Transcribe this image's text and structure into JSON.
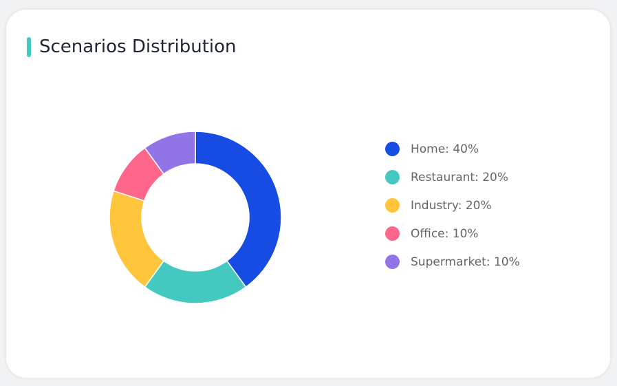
{
  "card": {
    "title": "Scenarios Distribution",
    "accent": "#42c9be"
  },
  "chart_data": {
    "type": "pie",
    "donut": true,
    "title": "Scenarios Distribution",
    "legend_position": "right",
    "slices": [
      {
        "name": "Home",
        "value": 40,
        "color": "#164be4",
        "label": "Home: 40%"
      },
      {
        "name": "Restaurant",
        "value": 20,
        "color": "#43c9bf",
        "label": "Restaurant: 20%"
      },
      {
        "name": "Industry",
        "value": 20,
        "color": "#ffc53d",
        "label": "Industry: 20%"
      },
      {
        "name": "Office",
        "value": 10,
        "color": "#ff668c",
        "label": "Office: 10%"
      },
      {
        "name": "Supermarket",
        "value": 10,
        "color": "#9175e6",
        "label": "Supermarket: 10%"
      }
    ]
  }
}
